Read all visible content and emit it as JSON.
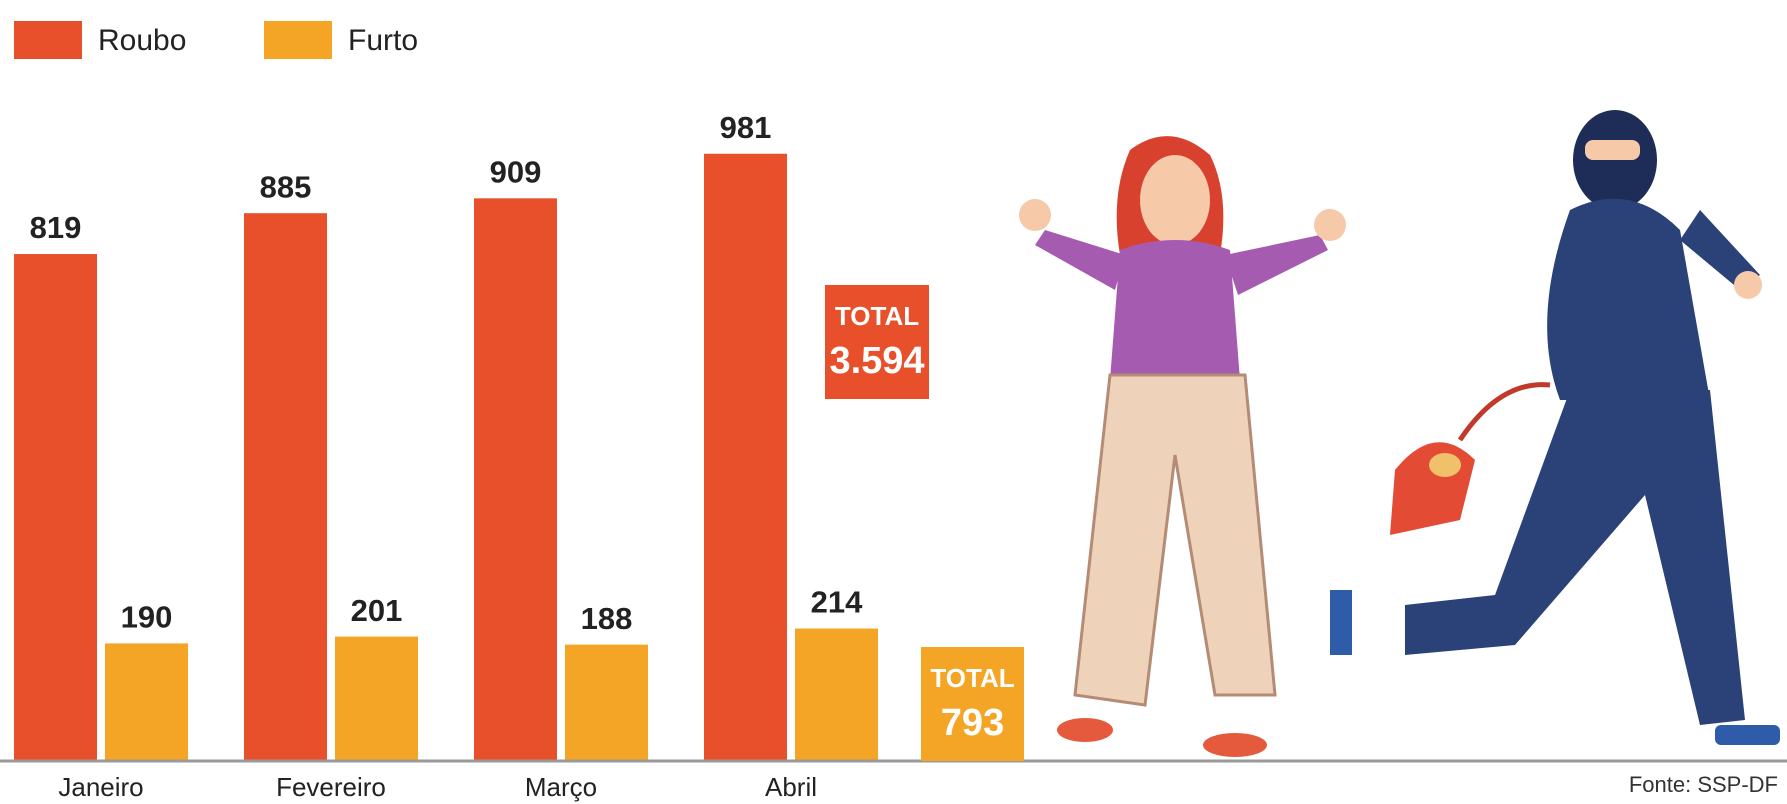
{
  "chart_data": {
    "type": "bar",
    "categories": [
      "Janeiro",
      "Fevereiro",
      "Março",
      "Abril"
    ],
    "series": [
      {
        "name": "Roubo",
        "color": "#e8502b",
        "values": [
          819,
          885,
          909,
          981
        ]
      },
      {
        "name": "Furto",
        "color": "#f5a526",
        "values": [
          190,
          201,
          188,
          214
        ]
      }
    ],
    "ylim": [
      0,
      1000
    ],
    "totals": [
      {
        "label": "TOTAL",
        "value": 3594,
        "value_label": "3.594"
      },
      {
        "label": "TOTAL",
        "value": 793
      }
    ],
    "source": "Fonte: SSP-DF"
  }
}
